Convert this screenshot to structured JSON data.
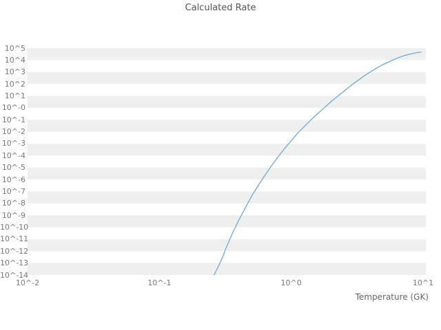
{
  "chart_data": {
    "type": "line",
    "title": "Calculated Rate",
    "xlabel": "Temperature (GK)",
    "ylabel": "",
    "x_scale": "log",
    "y_scale": "log",
    "xlim_log": [
      -2,
      1
    ],
    "ylim_log": [
      -14,
      5
    ],
    "grid": "striped-horizontal-bands",
    "legend": "none",
    "band_color": "#efefef",
    "x_ticks": [
      "10^-2",
      "10^-1",
      "10^0",
      "10^1"
    ],
    "x_tick_logs": [
      -2,
      -1,
      0,
      1
    ],
    "y_ticks": [
      "10^5",
      "10^4",
      "10^3",
      "10^2",
      "10^1",
      "10^-0",
      "10^-1",
      "10^-2",
      "10^-3",
      "10^-4",
      "10^-5",
      "10^-6",
      "10^-7",
      "10^-8",
      "10^-9",
      "10^-10",
      "10^-11",
      "10^-12",
      "10^-13",
      "10^-14"
    ],
    "y_tick_logs": [
      5,
      4,
      3,
      2,
      1,
      0,
      -1,
      -2,
      -3,
      -4,
      -5,
      -6,
      -7,
      -8,
      -9,
      -10,
      -11,
      -12,
      -13,
      -14
    ],
    "series": [
      {
        "name": "calculated-rate",
        "color": "#6ea8d8",
        "x": [
          0.26,
          0.282,
          0.302,
          0.316,
          0.355,
          0.398,
          0.447,
          0.501,
          0.562,
          0.631,
          0.708,
          0.794,
          0.891,
          1.0,
          1.122,
          1.259,
          1.413,
          1.585,
          1.778,
          1.995,
          2.239,
          2.512,
          2.818,
          3.162,
          3.548,
          3.981,
          4.467,
          5.012,
          5.623,
          6.31,
          7.079,
          7.943,
          8.913,
          9.66
        ],
        "y": [
          1e-14,
          6.3e-14,
          3.2e-13,
          1.3e-12,
          2.5e-11,
          3.5e-10,
          4e-09,
          4e-08,
          3.2e-07,
          2.2e-06,
          1.4e-05,
          7.9e-05,
          0.0004,
          0.0018,
          0.0079,
          0.028,
          0.1,
          0.32,
          1.0,
          3.2,
          8.9,
          25.0,
          71.0,
          178.0,
          447.0,
          1000.0,
          2240.0,
          4470.0,
          7940.0,
          14100.0,
          22400.0,
          31600.0,
          41700.0,
          46800.0
        ]
      }
    ]
  }
}
